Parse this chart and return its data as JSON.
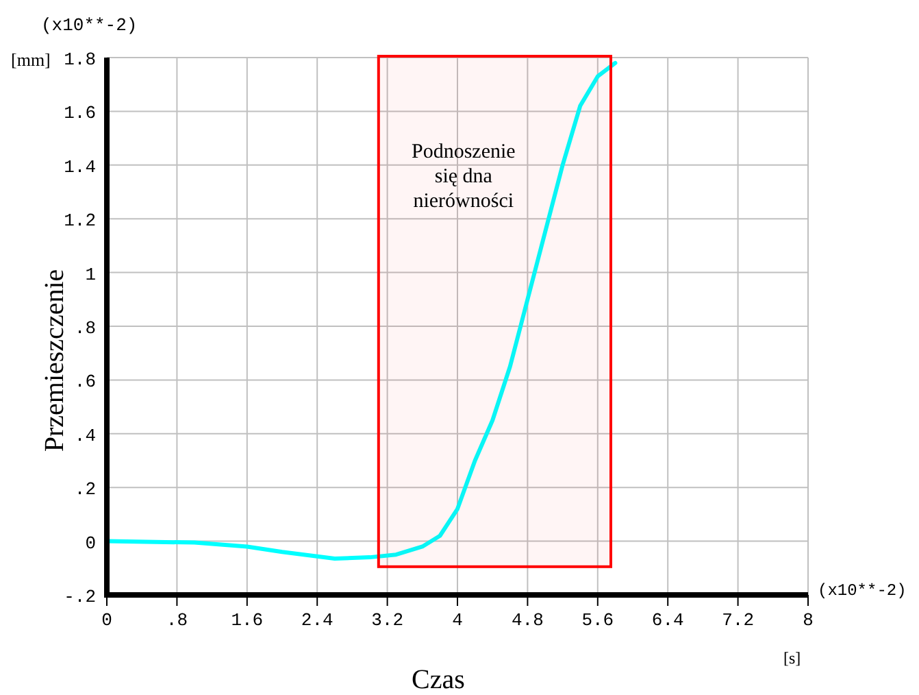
{
  "chart_data": {
    "type": "line",
    "xlabel": "Czas",
    "ylabel": "Przemieszczenie",
    "annotations": [
      "(x10**-2)",
      "[mm]",
      "(x10**-2)",
      "[s]"
    ],
    "x": [
      0,
      1,
      1.6,
      2,
      2.6,
      3,
      3.3,
      3.6,
      3.8,
      4,
      4.2,
      4.4,
      4.6,
      4.8,
      5,
      5.2,
      5.4,
      5.6,
      5.8
    ],
    "series": [
      {
        "color": "#00ffff",
        "values": [
          0,
          -0.005,
          -0.02,
          -0.04,
          -0.065,
          -0.06,
          -0.05,
          -0.02,
          0.02,
          0.12,
          0.3,
          0.45,
          0.65,
          0.9,
          1.15,
          1.4,
          1.62,
          1.73,
          1.78
        ]
      }
    ],
    "xlim": [
      0,
      8
    ],
    "xticks": [
      0,
      {
        "value": 0.8,
        "label": ".8"
      },
      1.6,
      2.4,
      3.2,
      4,
      4.8,
      5.6,
      6.4,
      7.2,
      8
    ],
    "ylim": [
      -0.2,
      1.8
    ],
    "yticks": [
      {
        "value": -0.2,
        "label": "-.2"
      },
      0,
      {
        "value": 0.2,
        "label": ".2"
      },
      {
        "value": 0.4,
        "label": ".4"
      },
      {
        "value": 0.6,
        "label": ".6"
      },
      {
        "value": 0.8,
        "label": ".8"
      },
      1,
      1.2,
      1.4,
      1.6,
      1.8
    ],
    "bands": [
      {
        "axis": "x",
        "from": 3.1,
        "to": 5.75,
        "label": "Podnoszenie się dna nierówności",
        "color": "#ff0000"
      }
    ],
    "grid": true,
    "marker": "none",
    "line_style": "solid"
  }
}
